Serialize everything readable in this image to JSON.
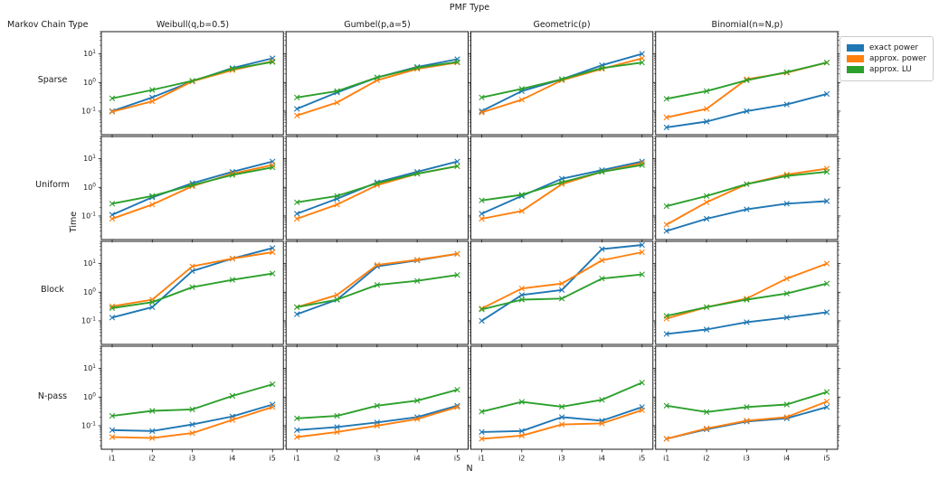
{
  "figure": {
    "title": "PMF Type",
    "row_axis_title": "Markov Chain Type",
    "ylabel": "Time",
    "xlabel": "N"
  },
  "legend": {
    "entries": [
      {
        "label": "exact power",
        "color": "#1f77b4"
      },
      {
        "label": "approx. power",
        "color": "#ff7f0e"
      },
      {
        "label": "approx. LU",
        "color": "#2ca02c"
      }
    ]
  },
  "chart_data": {
    "type": "line",
    "yscale": "log",
    "ylim": [
      0.015,
      60
    ],
    "ytick_exponents": [
      1,
      0,
      -1
    ],
    "x": [
      "i1",
      "i2",
      "i3",
      "i4",
      "i5"
    ],
    "grid": {
      "columns": [
        "Weibull(q,b=0.5)",
        "Gumbel(p,a=5)",
        "Geometric(p)",
        "Binomial(n=N,p)"
      ],
      "rows": [
        "Sparse",
        "Uniform",
        "Block",
        "N-pass"
      ]
    },
    "series_names": [
      "exact power",
      "approx. power",
      "approx. LU"
    ],
    "series_colors": [
      "#1f77b4",
      "#ff7f0e",
      "#2ca02c"
    ],
    "cells": [
      {
        "row": "Sparse",
        "col": "Weibull(q,b=0.5)",
        "series": [
          {
            "name": "exact power",
            "values": [
              0.1,
              0.3,
              1.1,
              3.2,
              7.0
            ]
          },
          {
            "name": "approx. power",
            "values": [
              0.095,
              0.22,
              1.1,
              2.7,
              5.5
            ]
          },
          {
            "name": "approx. LU",
            "values": [
              0.28,
              0.55,
              1.15,
              3.0,
              5.2
            ]
          }
        ]
      },
      {
        "row": "Sparse",
        "col": "Gumbel(p,a=5)",
        "series": [
          {
            "name": "exact power",
            "values": [
              0.12,
              0.45,
              1.5,
              3.5,
              6.5
            ]
          },
          {
            "name": "approx. power",
            "values": [
              0.07,
              0.2,
              1.2,
              3.0,
              5.0
            ]
          },
          {
            "name": "approx. LU",
            "values": [
              0.3,
              0.5,
              1.5,
              3.3,
              5.2
            ]
          }
        ]
      },
      {
        "row": "Sparse",
        "col": "Geometric(p)",
        "series": [
          {
            "name": "exact power",
            "values": [
              0.1,
              0.5,
              1.3,
              4.0,
              10.0
            ]
          },
          {
            "name": "approx. power",
            "values": [
              0.09,
              0.25,
              1.2,
              3.0,
              7.0
            ]
          },
          {
            "name": "approx. LU",
            "values": [
              0.3,
              0.6,
              1.3,
              3.2,
              5.0
            ]
          }
        ]
      },
      {
        "row": "Sparse",
        "col": "Binomial(n=N,p)",
        "series": [
          {
            "name": "exact power",
            "values": [
              0.027,
              0.043,
              0.1,
              0.17,
              0.4
            ]
          },
          {
            "name": "approx. power",
            "values": [
              0.06,
              0.12,
              1.3,
              2.2,
              5.0
            ]
          },
          {
            "name": "approx. LU",
            "values": [
              0.27,
              0.5,
              1.2,
              2.3,
              5.0
            ]
          }
        ]
      },
      {
        "row": "Uniform",
        "col": "Weibull(q,b=0.5)",
        "series": [
          {
            "name": "exact power",
            "values": [
              0.11,
              0.45,
              1.4,
              3.5,
              8.0
            ]
          },
          {
            "name": "approx. power",
            "values": [
              0.08,
              0.25,
              1.1,
              3.0,
              6.0
            ]
          },
          {
            "name": "approx. LU",
            "values": [
              0.27,
              0.5,
              1.2,
              2.7,
              5.0
            ]
          }
        ]
      },
      {
        "row": "Uniform",
        "col": "Gumbel(p,a=5)",
        "series": [
          {
            "name": "exact power",
            "values": [
              0.12,
              0.4,
              1.5,
              3.5,
              8.0
            ]
          },
          {
            "name": "approx. power",
            "values": [
              0.08,
              0.25,
              1.2,
              3.0,
              5.5
            ]
          },
          {
            "name": "approx. LU",
            "values": [
              0.3,
              0.5,
              1.4,
              3.0,
              5.5
            ]
          }
        ]
      },
      {
        "row": "Uniform",
        "col": "Geometric(p)",
        "series": [
          {
            "name": "exact power",
            "values": [
              0.12,
              0.5,
              2.0,
              4.0,
              8.0
            ]
          },
          {
            "name": "approx. power",
            "values": [
              0.08,
              0.15,
              1.3,
              3.5,
              7.0
            ]
          },
          {
            "name": "approx. LU",
            "values": [
              0.35,
              0.55,
              1.5,
              3.5,
              6.0
            ]
          }
        ]
      },
      {
        "row": "Uniform",
        "col": "Binomial(n=N,p)",
        "series": [
          {
            "name": "exact power",
            "values": [
              0.03,
              0.08,
              0.17,
              0.27,
              0.33
            ]
          },
          {
            "name": "approx. power",
            "values": [
              0.05,
              0.3,
              1.3,
              2.8,
              4.5
            ]
          },
          {
            "name": "approx. LU",
            "values": [
              0.22,
              0.5,
              1.3,
              2.5,
              3.5
            ]
          }
        ]
      },
      {
        "row": "Block",
        "col": "Weibull(q,b=0.5)",
        "series": [
          {
            "name": "exact power",
            "values": [
              0.13,
              0.3,
              5.5,
              15.0,
              35.0
            ]
          },
          {
            "name": "approx. power",
            "values": [
              0.32,
              0.55,
              8.0,
              15.0,
              25.0
            ]
          },
          {
            "name": "approx. LU",
            "values": [
              0.28,
              0.45,
              1.5,
              2.7,
              4.5
            ]
          }
        ]
      },
      {
        "row": "Block",
        "col": "Gumbel(p,a=5)",
        "series": [
          {
            "name": "exact power",
            "values": [
              0.17,
              0.55,
              8.0,
              13.0,
              22.0
            ]
          },
          {
            "name": "approx. power",
            "values": [
              0.3,
              0.8,
              9.0,
              13.5,
              22.0
            ]
          },
          {
            "name": "approx. LU",
            "values": [
              0.3,
              0.55,
              1.8,
              2.5,
              4.0
            ]
          }
        ]
      },
      {
        "row": "Block",
        "col": "Geometric(p)",
        "series": [
          {
            "name": "exact power",
            "values": [
              0.1,
              0.8,
              1.2,
              32.0,
              45.0
            ]
          },
          {
            "name": "approx. power",
            "values": [
              0.27,
              1.35,
              2.0,
              13.0,
              25.0
            ]
          },
          {
            "name": "approx. LU",
            "values": [
              0.25,
              0.55,
              0.6,
              3.0,
              4.2
            ]
          }
        ]
      },
      {
        "row": "Block",
        "col": "Binomial(n=N,p)",
        "series": [
          {
            "name": "exact power",
            "values": [
              0.035,
              0.05,
              0.09,
              0.13,
              0.2
            ]
          },
          {
            "name": "approx. power",
            "values": [
              0.12,
              0.3,
              0.6,
              3.0,
              10.0
            ]
          },
          {
            "name": "approx. LU",
            "values": [
              0.15,
              0.3,
              0.55,
              0.9,
              2.0
            ]
          }
        ]
      },
      {
        "row": "N-pass",
        "col": "Weibull(q,b=0.5)",
        "series": [
          {
            "name": "exact power",
            "values": [
              0.07,
              0.065,
              0.11,
              0.21,
              0.55
            ]
          },
          {
            "name": "approx. power",
            "values": [
              0.04,
              0.037,
              0.055,
              0.16,
              0.45
            ]
          },
          {
            "name": "approx. LU",
            "values": [
              0.22,
              0.33,
              0.37,
              1.1,
              2.8
            ]
          }
        ]
      },
      {
        "row": "N-pass",
        "col": "Gumbel(p,a=5)",
        "series": [
          {
            "name": "exact power",
            "values": [
              0.07,
              0.09,
              0.13,
              0.2,
              0.5
            ]
          },
          {
            "name": "approx. power",
            "values": [
              0.04,
              0.06,
              0.1,
              0.17,
              0.45
            ]
          },
          {
            "name": "approx. LU",
            "values": [
              0.18,
              0.22,
              0.5,
              0.75,
              1.8
            ]
          }
        ]
      },
      {
        "row": "N-pass",
        "col": "Geometric(p)",
        "series": [
          {
            "name": "exact power",
            "values": [
              0.06,
              0.065,
              0.2,
              0.15,
              0.45
            ]
          },
          {
            "name": "approx. power",
            "values": [
              0.035,
              0.045,
              0.11,
              0.12,
              0.35
            ]
          },
          {
            "name": "approx. LU",
            "values": [
              0.31,
              0.68,
              0.46,
              0.8,
              3.2
            ]
          }
        ]
      },
      {
        "row": "N-pass",
        "col": "Binomial(n=N,p)",
        "series": [
          {
            "name": "exact power",
            "values": [
              0.035,
              0.075,
              0.14,
              0.18,
              0.45
            ]
          },
          {
            "name": "approx. power",
            "values": [
              0.035,
              0.08,
              0.15,
              0.2,
              0.7
            ]
          },
          {
            "name": "approx. LU",
            "values": [
              0.5,
              0.3,
              0.45,
              0.55,
              1.5
            ]
          }
        ]
      }
    ]
  }
}
